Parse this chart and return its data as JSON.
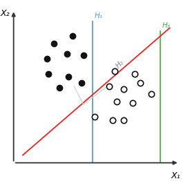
{
  "filled_dots": [
    [
      2.2,
      7.8
    ],
    [
      3.2,
      8.3
    ],
    [
      1.8,
      6.8
    ],
    [
      2.9,
      7.1
    ],
    [
      3.8,
      7.0
    ],
    [
      1.9,
      5.8
    ],
    [
      3.0,
      5.6
    ],
    [
      2.5,
      4.9
    ],
    [
      3.7,
      5.2
    ]
  ],
  "open_dots": [
    [
      5.5,
      6.0
    ],
    [
      6.6,
      5.8
    ],
    [
      5.2,
      5.0
    ],
    [
      6.0,
      4.8
    ],
    [
      6.9,
      5.2
    ],
    [
      5.6,
      4.0
    ],
    [
      6.5,
      3.9
    ],
    [
      4.4,
      3.0
    ],
    [
      5.4,
      2.8
    ],
    [
      6.0,
      2.8
    ],
    [
      7.5,
      4.5
    ]
  ],
  "H1_x": 4.3,
  "H3_x": 8.0,
  "H2_x0": 0.5,
  "H2_y0": 0.5,
  "H2_x1": 8.5,
  "H2_y1": 8.8,
  "H1_color": "#5599ee",
  "H2_color": "#ee2222",
  "H3_color": "#44bb44",
  "axis_color": "#333333",
  "dot_filled_color": "#111111",
  "dot_open_color": "#ffffff",
  "dot_open_edge": "#111111",
  "gray_line1": [
    [
      3.7,
      5.2
    ],
    [
      5.2,
      5.0
    ]
  ],
  "gray_line2": [
    [
      3.7,
      5.2
    ],
    [
      5.2,
      5.0
    ]
  ],
  "xlim": [
    0,
    9.5
  ],
  "ylim": [
    0,
    10.5
  ],
  "xlabel": "X₁",
  "ylabel": "X₂",
  "H1_label": "H₁",
  "H2_label": "H₂",
  "H3_label": "H₃",
  "figsize": [
    2.75,
    2.62
  ],
  "dpi": 100
}
